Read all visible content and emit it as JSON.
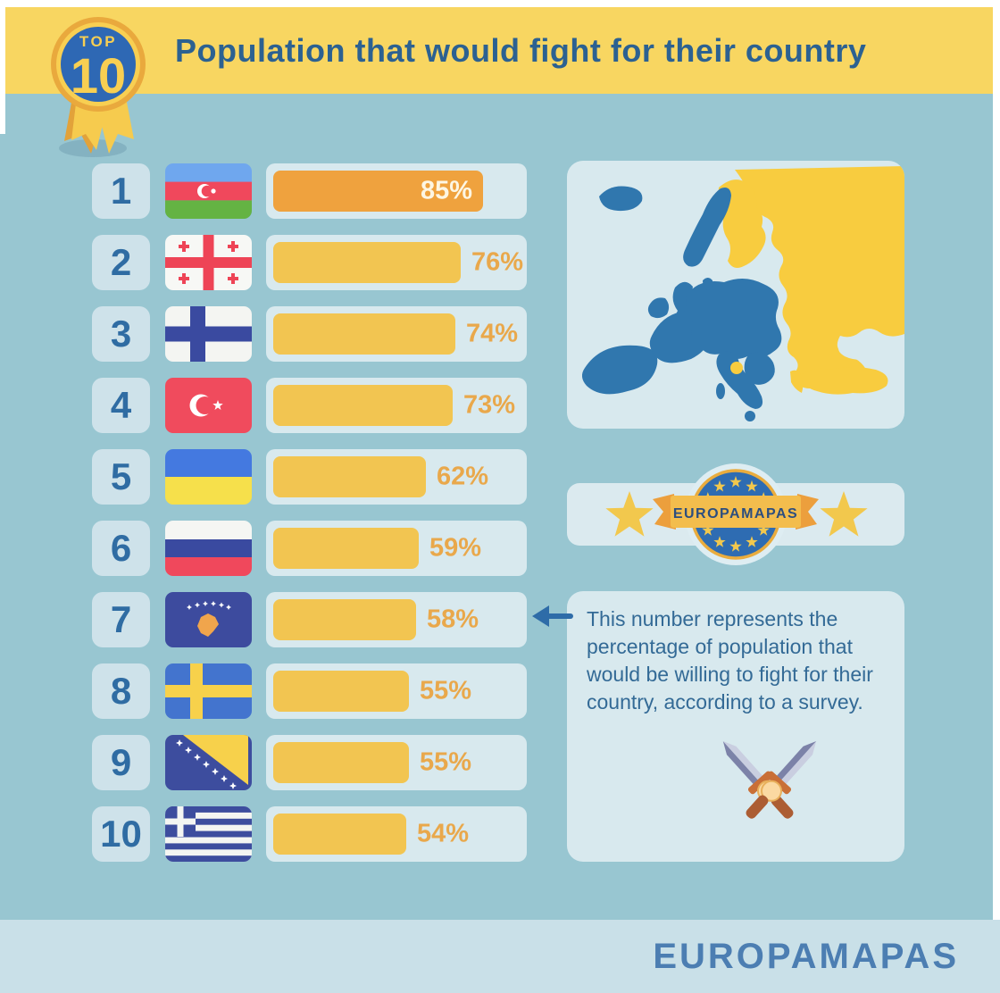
{
  "header": {
    "badge_top": "TOP",
    "badge_number": "10",
    "title": "Population that would fight for their country"
  },
  "chart_data": {
    "type": "bar",
    "orientation": "horizontal",
    "title": "Population that would fight for their country",
    "unit": "%",
    "categories": [
      "Azerbaijan",
      "Georgia",
      "Finland",
      "Turkey",
      "Ukraine",
      "Russia",
      "Kosovo",
      "Sweden",
      "Bosnia and Herzegovina",
      "Greece"
    ],
    "values": [
      85,
      76,
      74,
      73,
      62,
      59,
      58,
      55,
      55,
      54
    ],
    "value_labels": [
      "85%",
      "76%",
      "74%",
      "73%",
      "62%",
      "59%",
      "58%",
      "55%",
      "55%",
      "54%"
    ],
    "ranks": [
      1,
      2,
      3,
      4,
      5,
      6,
      7,
      8,
      9,
      10
    ],
    "xlim": [
      0,
      100
    ],
    "highlighted_rank": 1,
    "legend_position": "none",
    "grid": false
  },
  "ranking": {
    "rows": [
      {
        "rank": "1",
        "country": "Azerbaijan",
        "flag": "azerbaijan",
        "percent": 85,
        "label": "85%",
        "highlight": true
      },
      {
        "rank": "2",
        "country": "Georgia",
        "flag": "georgia",
        "percent": 76,
        "label": "76%",
        "highlight": false
      },
      {
        "rank": "3",
        "country": "Finland",
        "flag": "finland",
        "percent": 74,
        "label": "74%",
        "highlight": false
      },
      {
        "rank": "4",
        "country": "Turkey",
        "flag": "turkey",
        "percent": 73,
        "label": "73%",
        "highlight": false
      },
      {
        "rank": "5",
        "country": "Ukraine",
        "flag": "ukraine",
        "percent": 62,
        "label": "62%",
        "highlight": false
      },
      {
        "rank": "6",
        "country": "Russia",
        "flag": "russia",
        "percent": 59,
        "label": "59%",
        "highlight": false
      },
      {
        "rank": "7",
        "country": "Kosovo",
        "flag": "kosovo",
        "percent": 58,
        "label": "58%",
        "highlight": false
      },
      {
        "rank": "8",
        "country": "Sweden",
        "flag": "sweden",
        "percent": 55,
        "label": "55%",
        "highlight": false
      },
      {
        "rank": "9",
        "country": "Bosnia and Herzegovina",
        "flag": "bosnia",
        "percent": 55,
        "label": "55%",
        "highlight": false
      },
      {
        "rank": "10",
        "country": "Greece",
        "flag": "greece",
        "percent": 54,
        "label": "54%",
        "highlight": false
      }
    ]
  },
  "side": {
    "brand_badge": {
      "text": "EUROPAMAPAS"
    },
    "note": {
      "text": "This number represents the percentage of population that would be willing to fight for their country, according to a survey."
    }
  },
  "footer": {
    "brand": "EUROPAMAPAS"
  },
  "colors": {
    "background": "#98C6D1",
    "frame": "#FFFFFF",
    "header_yellow": "#F8D661",
    "panel": "#D8E9EE",
    "rank_box": "#CEE2EA",
    "title_blue": "#2C6191",
    "note_blue": "#336A96",
    "bar_orange": "#EFA23E",
    "bar_yellow": "#F2C551",
    "label_orange": "#E9A84B",
    "label_on_orange": "#FDF6E3",
    "footer_bg": "#C9E0E8",
    "footer_text": "#4C7EB2",
    "map_west": "#3077AE",
    "map_east": "#F8CC3F",
    "medal_gold": "#E9A93D",
    "medal_yellow": "#F8CF52",
    "medal_blue": "#2E68B4",
    "arrow_blue": "#2E6CA8",
    "star_yellow": "#F2C84D",
    "eu_blue": "#2E6CB2",
    "ribbon_orange": "#EC9F3D",
    "ribbon_band": "#F3BD4D",
    "ribbon_text": "#2C4E7F"
  }
}
